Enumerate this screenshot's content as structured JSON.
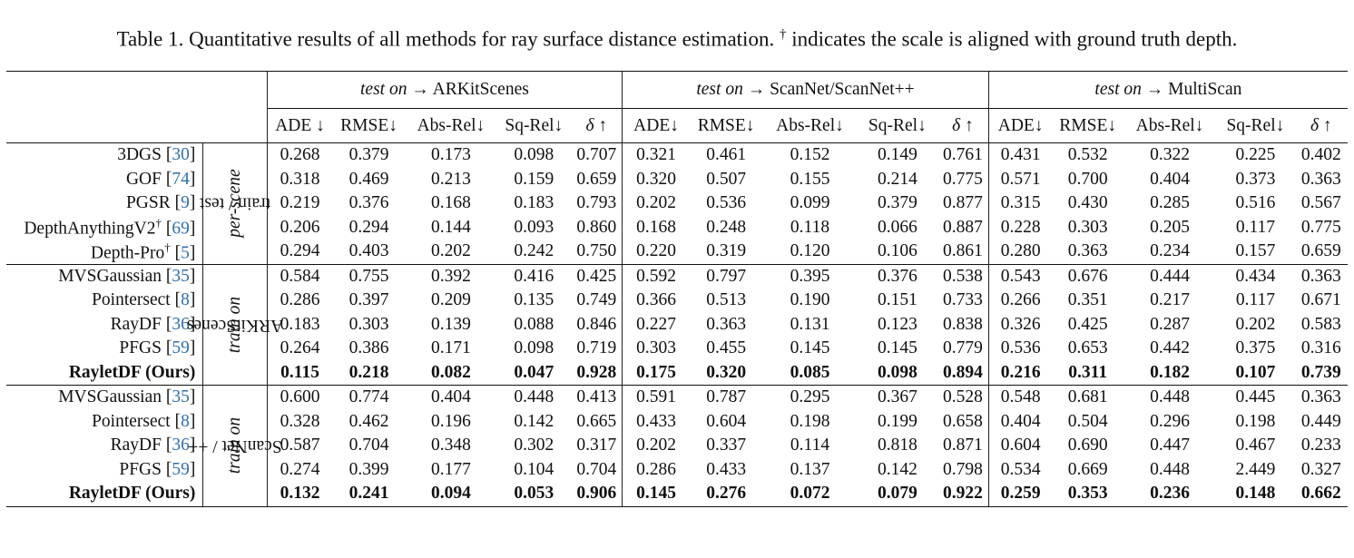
{
  "caption": {
    "prefix": "Table 1. Quantitative results of all methods for ray surface distance estimation.",
    "dagger": "†",
    "suffix": "indicates the scale is aligned with ground truth depth."
  },
  "headers": {
    "test_on": "test on",
    "arrow": "→",
    "datasets": [
      "ARKitScenes",
      "ScanNet/ScanNet++",
      "MultiScan"
    ],
    "metrics": [
      "ADE ↓",
      "RMSE↓",
      "Abs-Rel↓",
      "Sq-Rel↓",
      "δ ↑",
      "ADE↓",
      "RMSE↓",
      "Abs-Rel↓",
      "Sq-Rel↓",
      "δ ↑",
      "ADE↓",
      "RMSE↓",
      "Abs-Rel↓",
      "Sq-Rel↓",
      "δ ↑"
    ]
  },
  "groups": [
    {
      "label_line1": "per-scene",
      "label_line2": "train / test",
      "rows": [
        {
          "method": "3DGS",
          "sup": "",
          "ref": "30",
          "values": [
            "0.268",
            "0.379",
            "0.173",
            "0.098",
            "0.707",
            "0.321",
            "0.461",
            "0.152",
            "0.149",
            "0.761",
            "0.431",
            "0.532",
            "0.322",
            "0.225",
            "0.402"
          ]
        },
        {
          "method": "GOF",
          "sup": "",
          "ref": "74",
          "values": [
            "0.318",
            "0.469",
            "0.213",
            "0.159",
            "0.659",
            "0.320",
            "0.507",
            "0.155",
            "0.214",
            "0.775",
            "0.571",
            "0.700",
            "0.404",
            "0.373",
            "0.363"
          ]
        },
        {
          "method": "PGSR",
          "sup": "",
          "ref": "9",
          "values": [
            "0.219",
            "0.376",
            "0.168",
            "0.183",
            "0.793",
            "0.202",
            "0.536",
            "0.099",
            "0.379",
            "0.877",
            "0.315",
            "0.430",
            "0.285",
            "0.516",
            "0.567"
          ]
        },
        {
          "method": "DepthAnythingV2",
          "sup": "†",
          "ref": "69",
          "values": [
            "0.206",
            "0.294",
            "0.144",
            "0.093",
            "0.860",
            "0.168",
            "0.248",
            "0.118",
            "0.066",
            "0.887",
            "0.228",
            "0.303",
            "0.205",
            "0.117",
            "0.775"
          ]
        },
        {
          "method": "Depth-Pro",
          "sup": "†",
          "ref": "5",
          "values": [
            "0.294",
            "0.403",
            "0.202",
            "0.242",
            "0.750",
            "0.220",
            "0.319",
            "0.120",
            "0.106",
            "0.861",
            "0.280",
            "0.363",
            "0.234",
            "0.157",
            "0.659"
          ]
        }
      ]
    },
    {
      "label_line1": "train on",
      "label_line2": "ARKitScenes",
      "rows": [
        {
          "method": "MVSGaussian",
          "sup": "",
          "ref": "35",
          "values": [
            "0.584",
            "0.755",
            "0.392",
            "0.416",
            "0.425",
            "0.592",
            "0.797",
            "0.395",
            "0.376",
            "0.538",
            "0.543",
            "0.676",
            "0.444",
            "0.434",
            "0.363"
          ]
        },
        {
          "method": "Pointersect",
          "sup": "",
          "ref": "8",
          "values": [
            "0.286",
            "0.397",
            "0.209",
            "0.135",
            "0.749",
            "0.366",
            "0.513",
            "0.190",
            "0.151",
            "0.733",
            "0.266",
            "0.351",
            "0.217",
            "0.117",
            "0.671"
          ]
        },
        {
          "method": "RayDF",
          "sup": "",
          "ref": "36",
          "values": [
            "0.183",
            "0.303",
            "0.139",
            "0.088",
            "0.846",
            "0.227",
            "0.363",
            "0.131",
            "0.123",
            "0.838",
            "0.326",
            "0.425",
            "0.287",
            "0.202",
            "0.583"
          ]
        },
        {
          "method": "PFGS",
          "sup": "",
          "ref": "59",
          "values": [
            "0.264",
            "0.386",
            "0.171",
            "0.098",
            "0.719",
            "0.303",
            "0.455",
            "0.145",
            "0.145",
            "0.779",
            "0.536",
            "0.653",
            "0.442",
            "0.375",
            "0.316"
          ]
        },
        {
          "method": "RayletDF (Ours)",
          "sup": "",
          "ref": "",
          "bold": true,
          "values": [
            "0.115",
            "0.218",
            "0.082",
            "0.047",
            "0.928",
            "0.175",
            "0.320",
            "0.085",
            "0.098",
            "0.894",
            "0.216",
            "0.311",
            "0.182",
            "0.107",
            "0.739"
          ]
        }
      ]
    },
    {
      "label_line1": "train on",
      "label_line2": "ScanNet / ++",
      "rows": [
        {
          "method": "MVSGaussian",
          "sup": "",
          "ref": "35",
          "values": [
            "0.600",
            "0.774",
            "0.404",
            "0.448",
            "0.413",
            "0.591",
            "0.787",
            "0.295",
            "0.367",
            "0.528",
            "0.548",
            "0.681",
            "0.448",
            "0.445",
            "0.363"
          ]
        },
        {
          "method": "Pointersect",
          "sup": "",
          "ref": "8",
          "values": [
            "0.328",
            "0.462",
            "0.196",
            "0.142",
            "0.665",
            "0.433",
            "0.604",
            "0.198",
            "0.199",
            "0.658",
            "0.404",
            "0.504",
            "0.296",
            "0.198",
            "0.449"
          ]
        },
        {
          "method": "RayDF",
          "sup": "",
          "ref": "36",
          "values": [
            "0.587",
            "0.704",
            "0.348",
            "0.302",
            "0.317",
            "0.202",
            "0.337",
            "0.114",
            "0.818",
            "0.871",
            "0.604",
            "0.690",
            "0.447",
            "0.467",
            "0.233"
          ]
        },
        {
          "method": "PFGS",
          "sup": "",
          "ref": "59",
          "values": [
            "0.274",
            "0.399",
            "0.177",
            "0.104",
            "0.704",
            "0.286",
            "0.433",
            "0.137",
            "0.142",
            "0.798",
            "0.534",
            "0.669",
            "0.448",
            "2.449",
            "0.327"
          ]
        },
        {
          "method": "RayletDF (Ours)",
          "sup": "",
          "ref": "",
          "bold": true,
          "values": [
            "0.132",
            "0.241",
            "0.094",
            "0.053",
            "0.906",
            "0.145",
            "0.276",
            "0.072",
            "0.079",
            "0.922",
            "0.259",
            "0.353",
            "0.236",
            "0.148",
            "0.662"
          ]
        }
      ]
    }
  ]
}
